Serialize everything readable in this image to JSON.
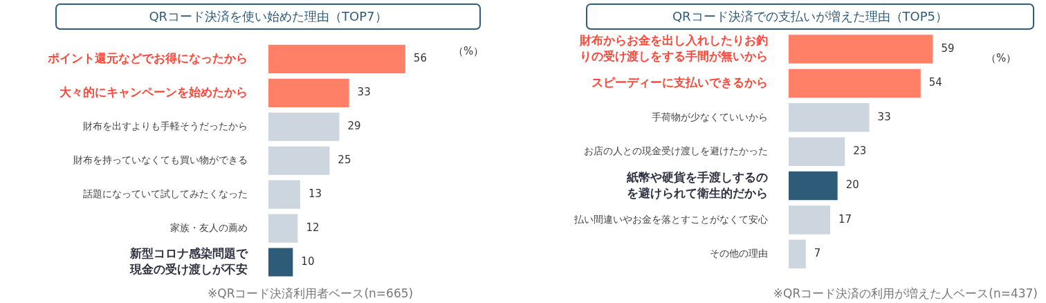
{
  "chart_data": [
    {
      "type": "bar",
      "orientation": "horizontal",
      "title": "QRコード決済を使い始めた理由（TOP7）",
      "categories": [
        "ポイント還元などでお得になったから",
        "大々的にキャンペーンを始めたから",
        "財布を出すよりも手軽そうだったから",
        "財布を持っていなくても買い物ができる",
        "話題になっていて試してみたくなった",
        "家族・友人の薦め",
        "新型コロナ感染問題で現金の受け渡しが不安"
      ],
      "values": [
        56,
        33,
        29,
        25,
        13,
        12,
        10
      ],
      "color": "#cdd5df",
      "colors": [
        "#ff8066",
        "#ff8066",
        "#cdd5df",
        "#cdd5df",
        "#cdd5df",
        "#cdd5df",
        "#2e5b78"
      ],
      "data_labels": true,
      "grid": false,
      "legend": false,
      "tick_labels": "y",
      "annotations": [
        "（%）",
        "※QRコード決済利用者ベース(n=665)"
      ]
    },
    {
      "type": "bar",
      "orientation": "horizontal",
      "title": "QRコード決済での支払いが増えた理由（TOP5）",
      "categories": [
        "財布からお金を出し入れしたりお釣りの受け渡しをする手間が無いから",
        "スピーディーに支払いできるから",
        "手荷物が少なくていいから",
        "お店の人との現金受け渡しを避けたかった",
        "紙幣や硬貨を手渡しするのを避けられて衛生的だから",
        "払い間違いやお金を落とすことがなくて安心",
        "その他の理由"
      ],
      "values": [
        59,
        54,
        33,
        23,
        20,
        17,
        7
      ],
      "color": "#cdd5df",
      "colors": [
        "#ff8066",
        "#ff8066",
        "#cdd5df",
        "#cdd5df",
        "#2e5b78",
        "#cdd5df",
        "#cdd5df"
      ],
      "data_labels": true,
      "grid": false,
      "legend": false,
      "tick_labels": "y",
      "annotations": [
        "（%）",
        "※QRコード決済の利用が増えた人ベース(n=437)"
      ]
    }
  ]
}
